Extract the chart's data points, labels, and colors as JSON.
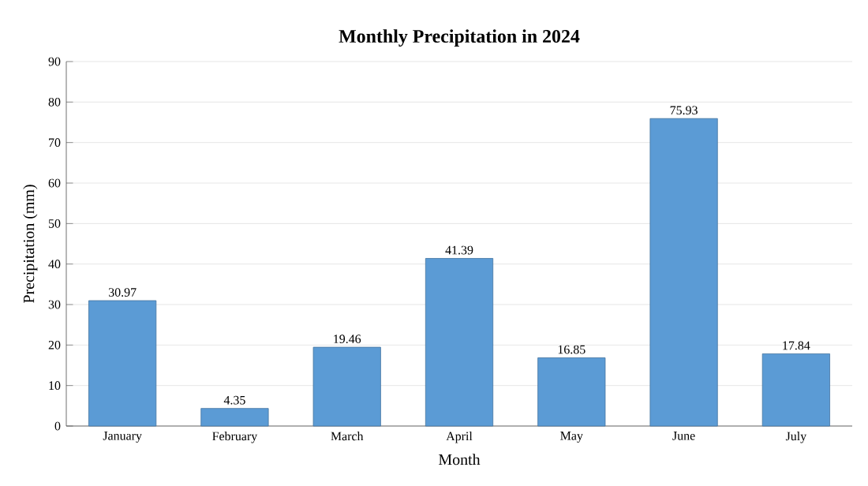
{
  "chart_data": {
    "type": "bar",
    "title": "Monthly Precipitation in 2024",
    "xlabel": "Month",
    "ylabel": "Precipitation (mm)",
    "categories": [
      "January",
      "February",
      "March",
      "April",
      "May",
      "June",
      "July"
    ],
    "values": [
      30.97,
      4.35,
      19.46,
      41.39,
      16.85,
      75.93,
      17.84
    ],
    "color": "#5b9bd5",
    "ylim": [
      0,
      90
    ],
    "yticks": [
      0,
      10,
      20,
      30,
      40,
      50,
      60,
      70,
      80,
      90
    ],
    "grid": "y",
    "data_labels": true
  }
}
